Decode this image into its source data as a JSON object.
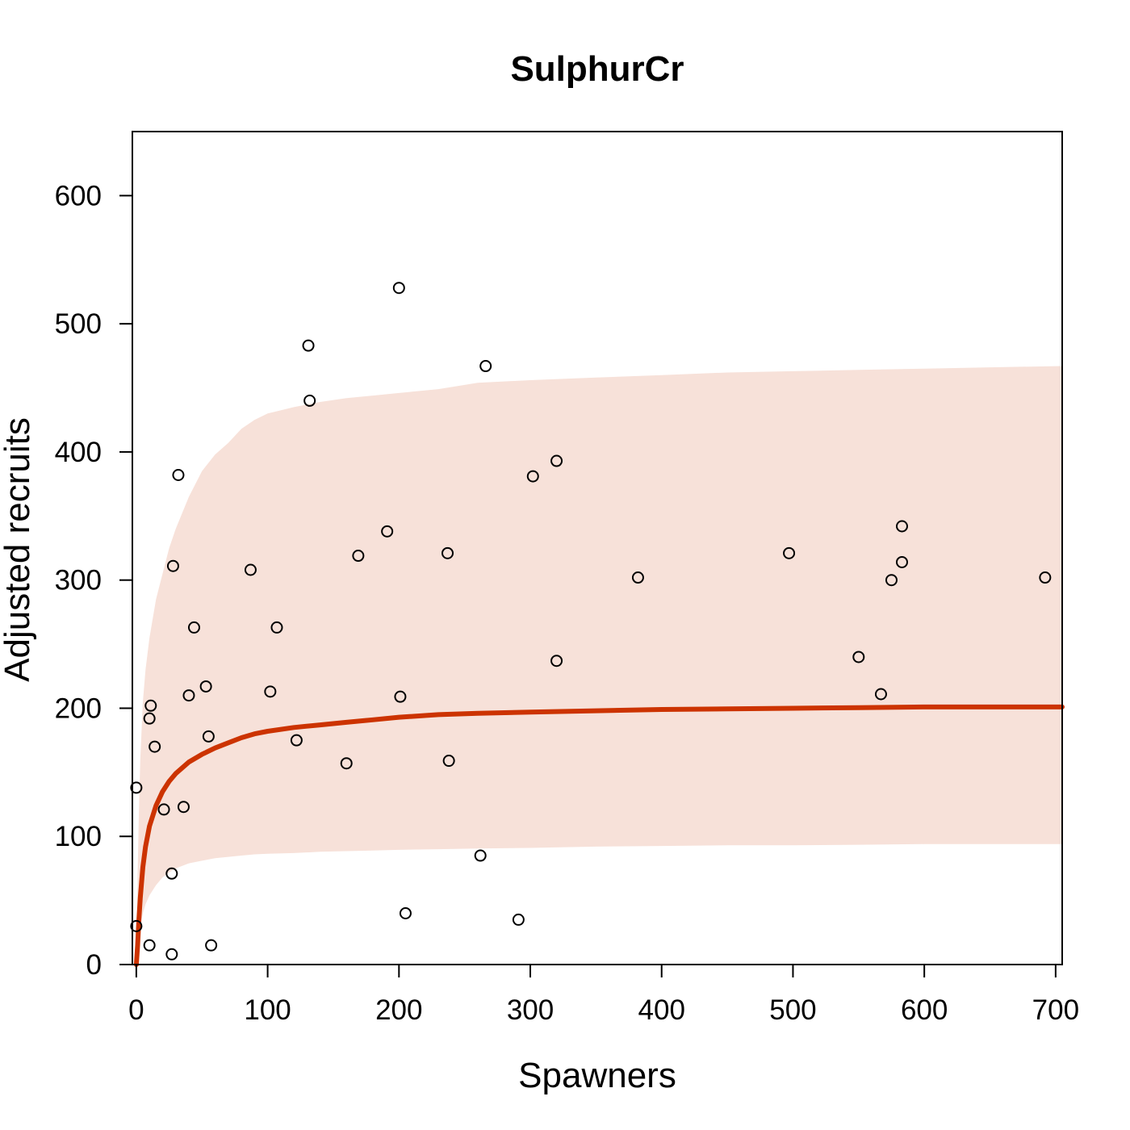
{
  "chart_data": {
    "type": "scatter",
    "title": "SulphurCr",
    "xlabel": "Spawners",
    "ylabel": "Adjusted recruits",
    "xlim": [
      -3,
      705
    ],
    "ylim": [
      0,
      650
    ],
    "xticks": [
      0,
      100,
      200,
      300,
      400,
      500,
      600,
      700
    ],
    "yticks": [
      0,
      100,
      200,
      300,
      400,
      500,
      600
    ],
    "grid": false,
    "legend": "none",
    "colors": {
      "fit_line": "#cc3300",
      "band_fill": "#f7e1d9",
      "point_stroke": "#000000"
    },
    "points": {
      "x": [
        0,
        0,
        10,
        10,
        11,
        14,
        21,
        27,
        27,
        28,
        32,
        36,
        40,
        44,
        53,
        55,
        57,
        87,
        102,
        107,
        122,
        131,
        132,
        160,
        169,
        191,
        200,
        201,
        205,
        237,
        238,
        262,
        266,
        291,
        302,
        320,
        320,
        382,
        497,
        550,
        567,
        575,
        583,
        583,
        692
      ],
      "y": [
        138,
        30,
        15,
        192,
        202,
        170,
        121,
        8,
        71,
        311,
        382,
        123,
        210,
        263,
        217,
        178,
        15,
        308,
        213,
        263,
        175,
        483,
        440,
        157,
        319,
        338,
        528,
        209,
        40,
        321,
        159,
        85,
        467,
        35,
        381,
        393,
        237,
        302,
        321,
        240,
        211,
        300,
        342,
        314,
        302
      ]
    },
    "fit": {
      "x": [
        0,
        1,
        2,
        3,
        5,
        7,
        10,
        15,
        20,
        25,
        30,
        40,
        50,
        60,
        70,
        80,
        90,
        100,
        120,
        140,
        160,
        180,
        200,
        230,
        260,
        300,
        350,
        400,
        450,
        500,
        550,
        600,
        650,
        705
      ],
      "y": [
        0,
        15,
        35,
        52,
        76,
        92,
        108,
        124,
        135,
        143,
        149,
        158,
        164,
        169,
        173,
        177,
        180,
        182,
        185,
        187,
        189,
        191,
        193,
        195,
        196,
        197,
        198,
        199,
        199.5,
        200,
        200.5,
        201,
        201,
        201
      ]
    },
    "band": {
      "x": [
        0,
        1,
        2,
        3,
        5,
        7,
        10,
        15,
        20,
        25,
        30,
        40,
        50,
        60,
        70,
        80,
        90,
        100,
        120,
        140,
        160,
        180,
        200,
        230,
        260,
        300,
        350,
        400,
        450,
        500,
        550,
        600,
        650,
        705
      ],
      "lower": [
        0,
        5,
        20,
        30,
        40,
        47,
        54,
        62,
        68,
        72,
        75,
        79,
        81,
        83,
        84,
        85,
        86,
        86.5,
        87,
        88,
        88.5,
        89,
        89.5,
        90,
        90.5,
        91,
        92,
        92.5,
        93,
        93,
        93.5,
        94,
        94,
        94
      ],
      "upper": [
        0,
        70,
        120,
        160,
        205,
        230,
        255,
        285,
        305,
        325,
        340,
        365,
        385,
        398,
        407,
        418,
        425,
        430,
        435,
        439,
        442,
        444,
        446,
        449,
        454,
        456,
        458,
        460,
        462,
        463,
        464,
        465,
        466,
        467
      ]
    }
  }
}
